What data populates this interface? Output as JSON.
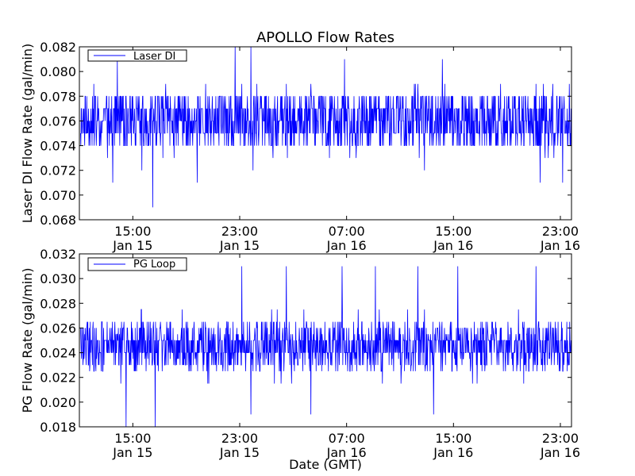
{
  "figure": {
    "title": "APOLLO Flow Rates",
    "xlabel": "Date (GMT)"
  },
  "chart_data": [
    {
      "type": "line",
      "ylabel": "Laser DI Flow Rate (gal/min)",
      "ylim": [
        0.068,
        0.082
      ],
      "yticks": [
        "0.068",
        "0.070",
        "0.072",
        "0.074",
        "0.076",
        "0.078",
        "0.080",
        "0.082"
      ],
      "xlim": [
        "2014-01-15 11:00",
        "2014-01-16 23:50"
      ],
      "xticks": [
        {
          "x": "2014-01-15 15:00",
          "time": "15:00",
          "date": "Jan 15"
        },
        {
          "x": "2014-01-15 23:00",
          "time": "23:00",
          "date": "Jan 15"
        },
        {
          "x": "2014-01-16 07:00",
          "time": "07:00",
          "date": "Jan 16"
        },
        {
          "x": "2014-01-16 15:00",
          "time": "15:00",
          "date": "Jan 16"
        },
        {
          "x": "2014-01-16 23:00",
          "time": "23:00",
          "date": "Jan 16"
        }
      ],
      "legend": {
        "placement": "top-left"
      },
      "series": [
        {
          "name": "Laser DI",
          "color": "#0000ff",
          "typical_range": [
            0.074,
            0.078
          ],
          "center": 0.076,
          "resolution": 0.001,
          "notable_points": [
            {
              "x": "2014-01-15 13:50",
              "y": 0.081
            },
            {
              "x": "2014-01-15 13:30",
              "y": 0.071
            },
            {
              "x": "2014-01-15 15:40",
              "y": 0.072
            },
            {
              "x": "2014-01-15 16:30",
              "y": 0.069
            },
            {
              "x": "2014-01-15 19:50",
              "y": 0.071
            },
            {
              "x": "2014-01-15 22:40",
              "y": 0.082
            },
            {
              "x": "2014-01-15 23:50",
              "y": 0.082
            },
            {
              "x": "2014-01-16 00:00",
              "y": 0.072
            },
            {
              "x": "2014-01-16 06:50",
              "y": 0.081
            },
            {
              "x": "2014-01-16 12:50",
              "y": 0.072
            },
            {
              "x": "2014-01-16 14:10",
              "y": 0.081
            },
            {
              "x": "2014-01-16 21:30",
              "y": 0.071
            },
            {
              "x": "2014-01-16 23:10",
              "y": 0.071
            }
          ]
        }
      ]
    },
    {
      "type": "line",
      "ylabel": "PG Flow Rate (gal/min)",
      "ylim": [
        0.018,
        0.032
      ],
      "yticks": [
        "0.018",
        "0.020",
        "0.022",
        "0.024",
        "0.026",
        "0.028",
        "0.030",
        "0.032"
      ],
      "xlim": [
        "2014-01-15 11:00",
        "2014-01-16 23:50"
      ],
      "xticks": [
        {
          "x": "2014-01-15 15:00",
          "time": "15:00",
          "date": "Jan 15"
        },
        {
          "x": "2014-01-15 23:00",
          "time": "23:00",
          "date": "Jan 15"
        },
        {
          "x": "2014-01-16 07:00",
          "time": "07:00",
          "date": "Jan 16"
        },
        {
          "x": "2014-01-16 15:00",
          "time": "15:00",
          "date": "Jan 16"
        },
        {
          "x": "2014-01-16 23:00",
          "time": "23:00",
          "date": "Jan 16"
        }
      ],
      "legend": {
        "placement": "top-left"
      },
      "series": [
        {
          "name": "PG Loop",
          "color": "#0000ff",
          "typical_range": [
            0.023,
            0.026
          ],
          "center": 0.0245,
          "resolution": 0.001,
          "notable_points": [
            {
              "x": "2014-01-15 14:30",
              "y": 0.018
            },
            {
              "x": "2014-01-15 16:40",
              "y": 0.018
            },
            {
              "x": "2014-01-15 23:10",
              "y": 0.031
            },
            {
              "x": "2014-01-15 23:50",
              "y": 0.019
            },
            {
              "x": "2014-01-16 02:30",
              "y": 0.031
            },
            {
              "x": "2014-01-16 04:20",
              "y": 0.019
            },
            {
              "x": "2014-01-16 06:40",
              "y": 0.031
            },
            {
              "x": "2014-01-16 09:10",
              "y": 0.031
            },
            {
              "x": "2014-01-16 12:20",
              "y": 0.031
            },
            {
              "x": "2014-01-16 13:30",
              "y": 0.019
            },
            {
              "x": "2014-01-16 15:20",
              "y": 0.031
            },
            {
              "x": "2014-01-16 21:10",
              "y": 0.031
            }
          ]
        }
      ]
    }
  ]
}
